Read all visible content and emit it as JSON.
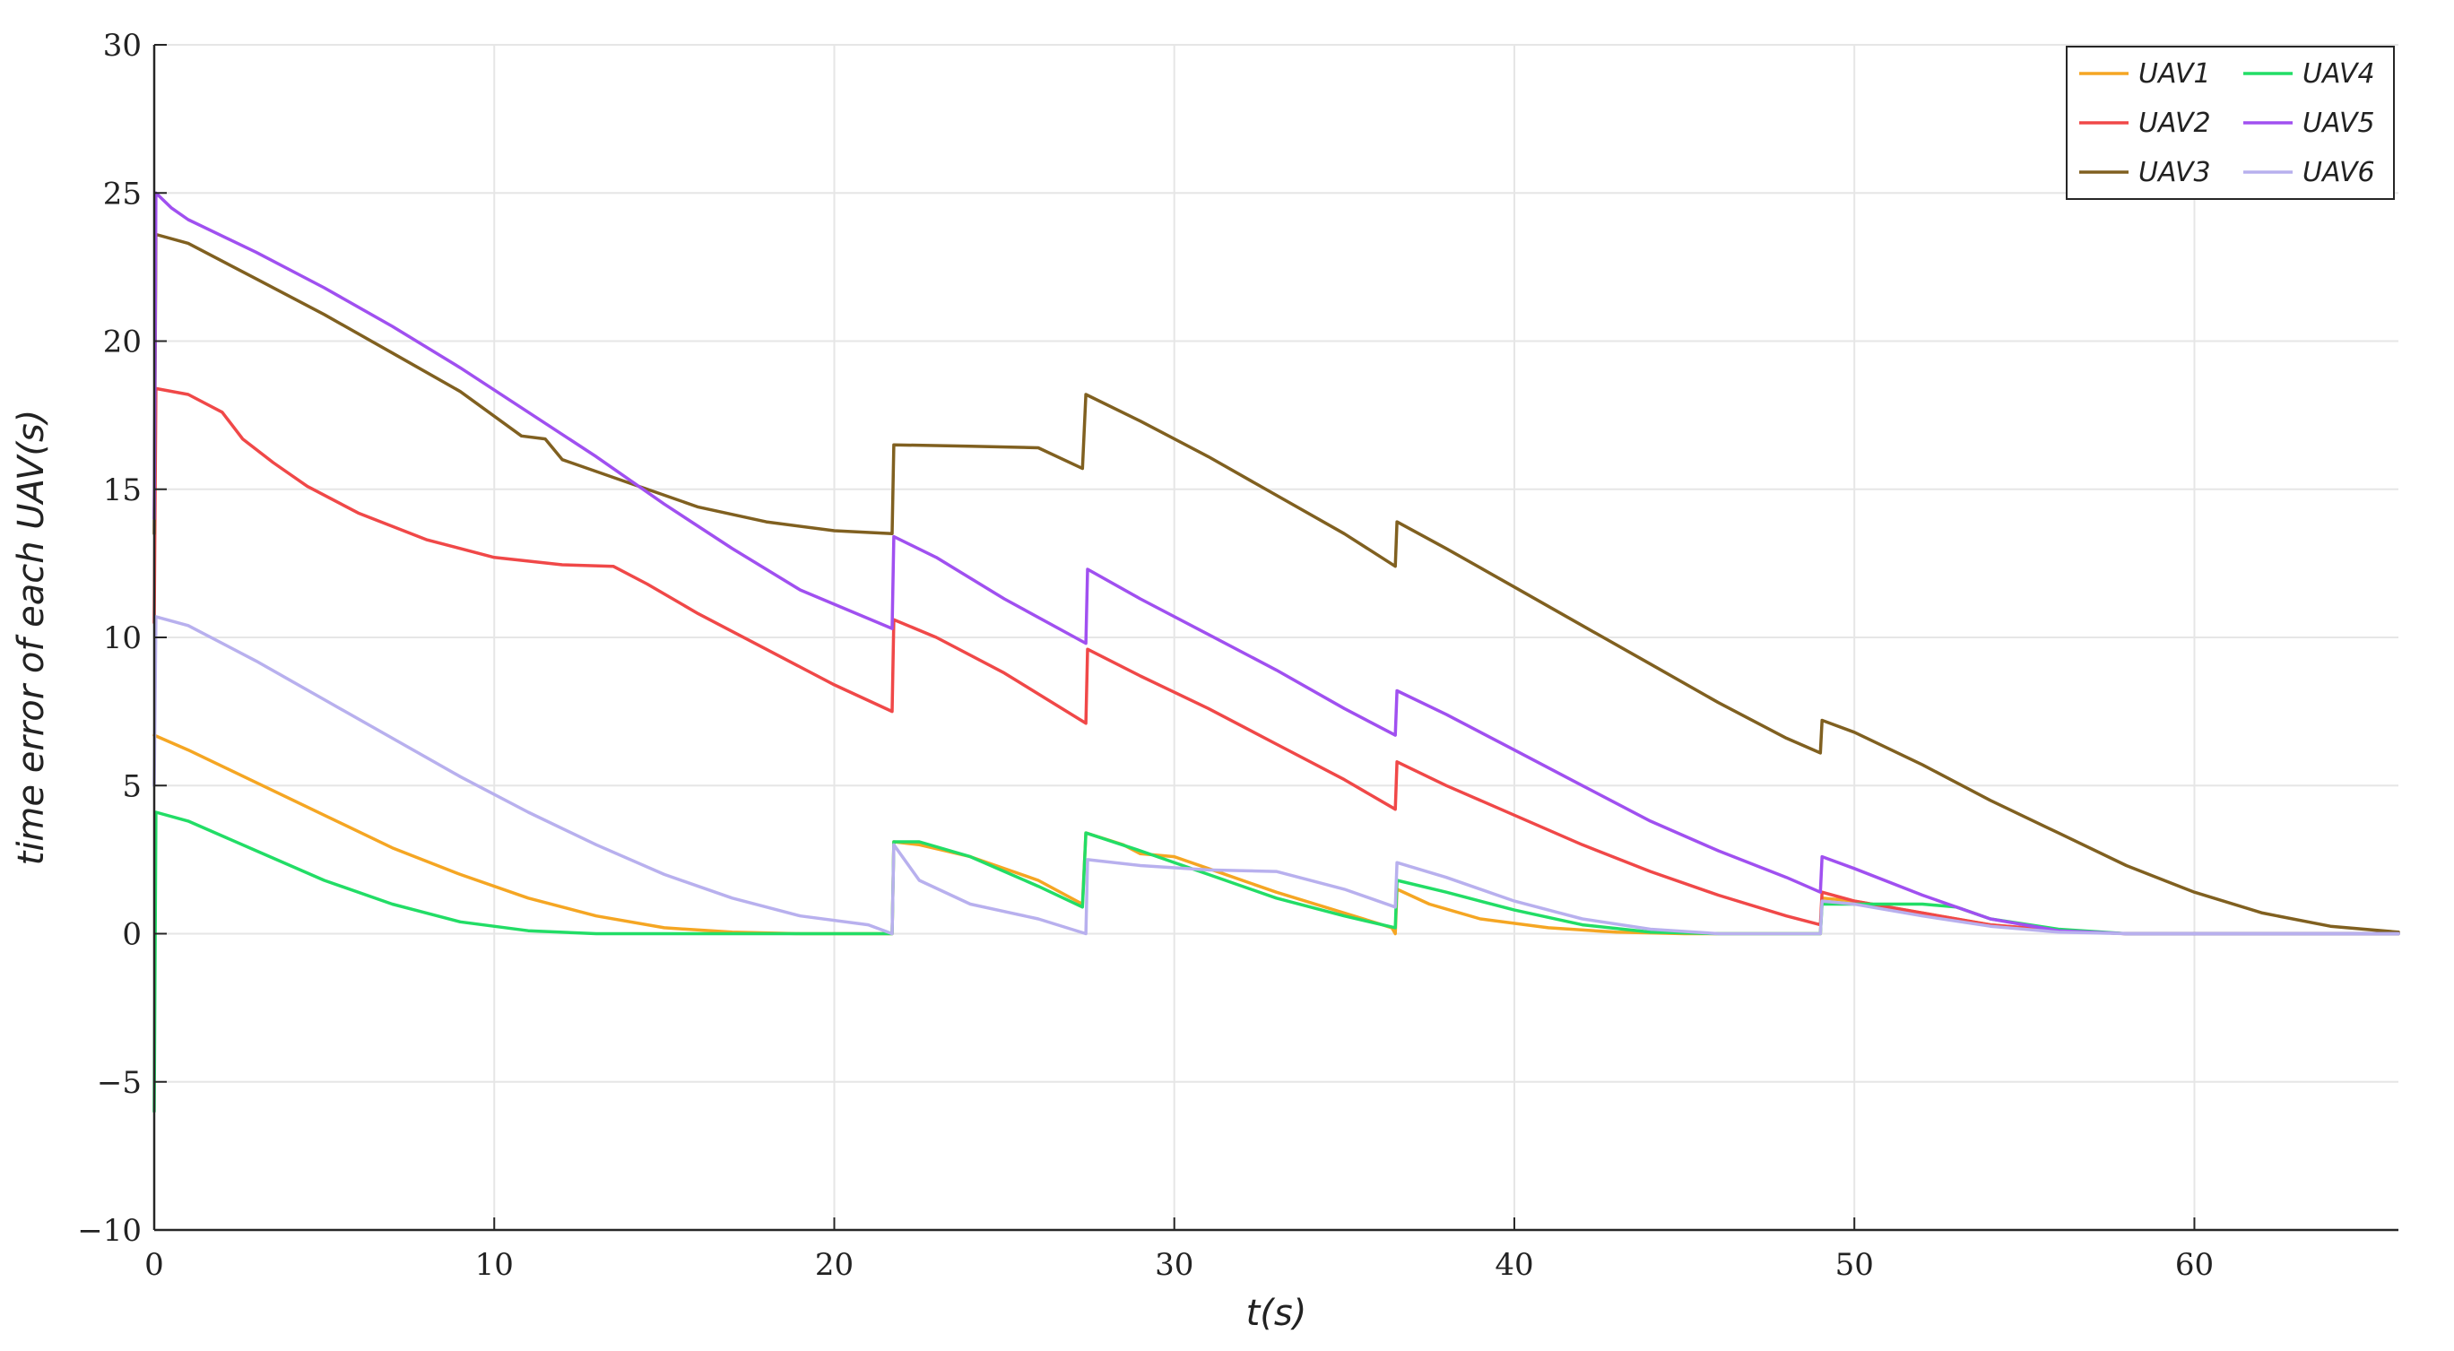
{
  "chart_data": {
    "type": "line",
    "title": "",
    "xlabel": "t(s)",
    "ylabel": "time error of each UAV(s)",
    "xlim": [
      0,
      66
    ],
    "ylim": [
      -10,
      30
    ],
    "xticks": [
      0,
      10,
      20,
      30,
      40,
      50,
      60
    ],
    "yticks": [
      -10,
      -5,
      0,
      5,
      10,
      15,
      20,
      25,
      30
    ],
    "ytick_labels": [
      "−10",
      "−5",
      "0",
      "5",
      "10",
      "15",
      "20",
      "25",
      "30"
    ],
    "grid": true,
    "legend": "top-right",
    "series": [
      {
        "name": "UAV1",
        "color": "#f5a623",
        "points": [
          [
            0,
            6.7
          ],
          [
            1,
            6.2
          ],
          [
            3,
            5.1
          ],
          [
            5,
            4.0
          ],
          [
            7,
            2.9
          ],
          [
            9,
            2.0
          ],
          [
            11,
            1.2
          ],
          [
            13,
            0.6
          ],
          [
            15,
            0.2
          ],
          [
            17,
            0.05
          ],
          [
            19,
            0.0
          ],
          [
            21.7,
            0.0
          ],
          [
            21.75,
            3.1
          ],
          [
            22.5,
            3.0
          ],
          [
            24,
            2.6
          ],
          [
            26,
            1.8
          ],
          [
            27.3,
            1.0
          ],
          [
            27.4,
            3.4
          ],
          [
            28.5,
            3.0
          ],
          [
            29,
            2.7
          ],
          [
            30,
            2.6
          ],
          [
            31,
            2.2
          ],
          [
            33,
            1.4
          ],
          [
            35,
            0.7
          ],
          [
            36.4,
            0.2
          ],
          [
            36.5,
            0.0
          ],
          [
            36.55,
            1.5
          ],
          [
            37.5,
            1.0
          ],
          [
            39,
            0.5
          ],
          [
            41,
            0.2
          ],
          [
            43,
            0.05
          ],
          [
            45,
            0.0
          ],
          [
            49,
            0.0
          ],
          [
            49.05,
            1.2
          ],
          [
            50,
            1.1
          ],
          [
            52,
            0.7
          ],
          [
            54,
            0.3
          ],
          [
            56,
            0.1
          ],
          [
            58,
            0.0
          ],
          [
            66,
            0.0
          ]
        ]
      },
      {
        "name": "UAV2",
        "color": "#f04848",
        "points": [
          [
            0,
            10.5
          ],
          [
            0.05,
            18.4
          ],
          [
            1,
            18.2
          ],
          [
            2,
            17.6
          ],
          [
            2.6,
            16.7
          ],
          [
            3.5,
            15.9
          ],
          [
            4.5,
            15.1
          ],
          [
            6,
            14.2
          ],
          [
            8,
            13.3
          ],
          [
            10,
            12.7
          ],
          [
            12,
            12.45
          ],
          [
            13.5,
            12.4
          ],
          [
            14.5,
            11.8
          ],
          [
            16,
            10.8
          ],
          [
            18,
            9.6
          ],
          [
            20,
            8.4
          ],
          [
            21.7,
            7.5
          ],
          [
            21.75,
            10.6
          ],
          [
            23,
            10.0
          ],
          [
            25,
            8.8
          ],
          [
            27.4,
            7.1
          ],
          [
            27.45,
            9.6
          ],
          [
            29,
            8.7
          ],
          [
            31,
            7.6
          ],
          [
            33,
            6.4
          ],
          [
            35,
            5.2
          ],
          [
            36.5,
            4.2
          ],
          [
            36.55,
            5.8
          ],
          [
            38,
            5.0
          ],
          [
            40,
            4.0
          ],
          [
            42,
            3.0
          ],
          [
            44,
            2.1
          ],
          [
            46,
            1.3
          ],
          [
            48,
            0.6
          ],
          [
            49,
            0.3
          ],
          [
            49.05,
            1.4
          ],
          [
            50,
            1.1
          ],
          [
            52,
            0.7
          ],
          [
            54,
            0.3
          ],
          [
            56,
            0.1
          ],
          [
            58,
            0.0
          ],
          [
            66,
            0.0
          ]
        ]
      },
      {
        "name": "UAV3",
        "color": "#806020",
        "points": [
          [
            0,
            13.5
          ],
          [
            0.05,
            23.6
          ],
          [
            1,
            23.3
          ],
          [
            3,
            22.1
          ],
          [
            5,
            20.9
          ],
          [
            7,
            19.6
          ],
          [
            9,
            18.3
          ],
          [
            10.8,
            16.8
          ],
          [
            11.5,
            16.7
          ],
          [
            12,
            16.0
          ],
          [
            14,
            15.2
          ],
          [
            16,
            14.4
          ],
          [
            18,
            13.9
          ],
          [
            20,
            13.6
          ],
          [
            21.7,
            13.5
          ],
          [
            21.75,
            16.5
          ],
          [
            24,
            16.45
          ],
          [
            26,
            16.4
          ],
          [
            27.3,
            15.7
          ],
          [
            27.4,
            18.2
          ],
          [
            29,
            17.3
          ],
          [
            31,
            16.1
          ],
          [
            33,
            14.8
          ],
          [
            35,
            13.5
          ],
          [
            36.5,
            12.4
          ],
          [
            36.55,
            13.9
          ],
          [
            38,
            13.0
          ],
          [
            40,
            11.7
          ],
          [
            42,
            10.4
          ],
          [
            44,
            9.1
          ],
          [
            46,
            7.8
          ],
          [
            48,
            6.6
          ],
          [
            49,
            6.1
          ],
          [
            49.05,
            7.2
          ],
          [
            50,
            6.8
          ],
          [
            52,
            5.7
          ],
          [
            54,
            4.5
          ],
          [
            56,
            3.4
          ],
          [
            58,
            2.3
          ],
          [
            60,
            1.4
          ],
          [
            62,
            0.7
          ],
          [
            64,
            0.25
          ],
          [
            66,
            0.05
          ]
        ]
      },
      {
        "name": "UAV4",
        "color": "#22dd66",
        "points": [
          [
            0,
            -6.0
          ],
          [
            0.05,
            4.1
          ],
          [
            1,
            3.8
          ],
          [
            3,
            2.8
          ],
          [
            5,
            1.8
          ],
          [
            7,
            1.0
          ],
          [
            9,
            0.4
          ],
          [
            11,
            0.1
          ],
          [
            13,
            0.0
          ],
          [
            21.7,
            0.0
          ],
          [
            21.75,
            3.1
          ],
          [
            22.5,
            3.1
          ],
          [
            24,
            2.6
          ],
          [
            26,
            1.6
          ],
          [
            27.3,
            0.9
          ],
          [
            27.4,
            3.4
          ],
          [
            29,
            2.8
          ],
          [
            31,
            2.0
          ],
          [
            33,
            1.2
          ],
          [
            35,
            0.6
          ],
          [
            36.5,
            0.2
          ],
          [
            36.55,
            1.8
          ],
          [
            38,
            1.4
          ],
          [
            40,
            0.8
          ],
          [
            42,
            0.3
          ],
          [
            44,
            0.05
          ],
          [
            46,
            0.0
          ],
          [
            49,
            0.0
          ],
          [
            49.05,
            1.0
          ],
          [
            50,
            1.0
          ],
          [
            52,
            1.0
          ],
          [
            53,
            0.9
          ],
          [
            54,
            0.5
          ],
          [
            56,
            0.15
          ],
          [
            58,
            0.0
          ],
          [
            66,
            0.0
          ]
        ]
      },
      {
        "name": "UAV5",
        "color": "#a050f0",
        "points": [
          [
            0,
            14.0
          ],
          [
            0.05,
            25.0
          ],
          [
            0.5,
            24.5
          ],
          [
            1,
            24.1
          ],
          [
            3,
            23.0
          ],
          [
            5,
            21.8
          ],
          [
            7,
            20.5
          ],
          [
            9,
            19.1
          ],
          [
            11,
            17.6
          ],
          [
            13,
            16.1
          ],
          [
            15,
            14.5
          ],
          [
            17,
            13.0
          ],
          [
            19,
            11.6
          ],
          [
            21.7,
            10.3
          ],
          [
            21.75,
            13.4
          ],
          [
            23,
            12.7
          ],
          [
            25,
            11.3
          ],
          [
            27.4,
            9.8
          ],
          [
            27.45,
            12.3
          ],
          [
            29,
            11.3
          ],
          [
            31,
            10.1
          ],
          [
            33,
            8.9
          ],
          [
            35,
            7.6
          ],
          [
            36.5,
            6.7
          ],
          [
            36.55,
            8.2
          ],
          [
            38,
            7.4
          ],
          [
            40,
            6.2
          ],
          [
            42,
            5.0
          ],
          [
            44,
            3.8
          ],
          [
            46,
            2.8
          ],
          [
            48,
            1.9
          ],
          [
            49,
            1.4
          ],
          [
            49.05,
            2.6
          ],
          [
            50,
            2.2
          ],
          [
            52,
            1.3
          ],
          [
            54,
            0.5
          ],
          [
            56,
            0.1
          ],
          [
            58,
            0.0
          ],
          [
            66,
            0.0
          ]
        ]
      },
      {
        "name": "UAV6",
        "color": "#b8b0ee",
        "points": [
          [
            0,
            5.0
          ],
          [
            0.05,
            10.7
          ],
          [
            1,
            10.4
          ],
          [
            3,
            9.2
          ],
          [
            5,
            7.9
          ],
          [
            7,
            6.6
          ],
          [
            9,
            5.3
          ],
          [
            11,
            4.1
          ],
          [
            13,
            3.0
          ],
          [
            15,
            2.0
          ],
          [
            17,
            1.2
          ],
          [
            19,
            0.6
          ],
          [
            21,
            0.3
          ],
          [
            21.7,
            0.0
          ],
          [
            21.75,
            3.0
          ],
          [
            22.5,
            1.8
          ],
          [
            24,
            1.0
          ],
          [
            26,
            0.5
          ],
          [
            27.4,
            0.0
          ],
          [
            27.45,
            2.5
          ],
          [
            29,
            2.3
          ],
          [
            31,
            2.15
          ],
          [
            33,
            2.1
          ],
          [
            35,
            1.5
          ],
          [
            36.5,
            0.9
          ],
          [
            36.55,
            2.4
          ],
          [
            38,
            1.9
          ],
          [
            40,
            1.1
          ],
          [
            42,
            0.5
          ],
          [
            44,
            0.15
          ],
          [
            46,
            0.0
          ],
          [
            49,
            0.0
          ],
          [
            49.05,
            1.1
          ],
          [
            50,
            1.0
          ],
          [
            52,
            0.6
          ],
          [
            54,
            0.25
          ],
          [
            56,
            0.05
          ],
          [
            58,
            0.0
          ],
          [
            66,
            0.0
          ]
        ]
      }
    ]
  }
}
